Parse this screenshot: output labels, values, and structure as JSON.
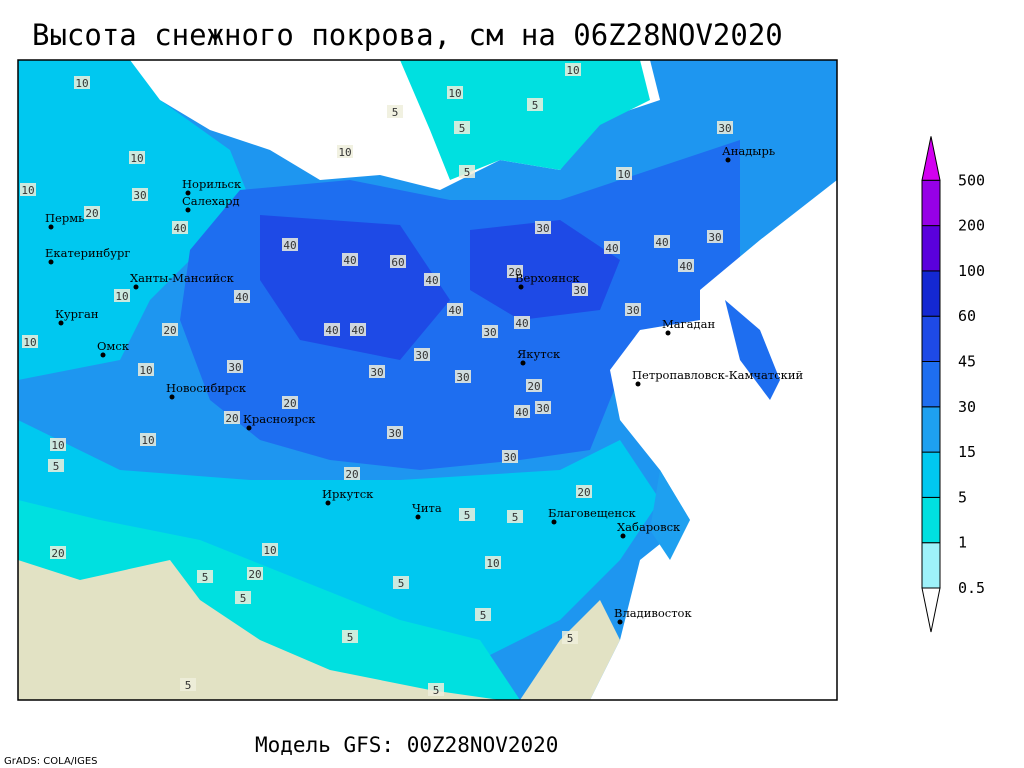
{
  "title": "Высота снежного покрова, см на 06Z28NOV2020",
  "model": "Модель GFS: 00Z28NOV2020",
  "credit": "GrADS: COLA/IGES",
  "legend": {
    "levels": [
      0.5,
      1,
      5,
      15,
      30,
      45,
      60,
      100,
      200,
      500
    ],
    "colors": [
      "#ffffff",
      "#9ef2fa",
      "#00e0e0",
      "#00c8f0",
      "#1ea0f0",
      "#1e6ef0",
      "#1e4ae6",
      "#1428d2",
      "#5a00dc",
      "#9600e6",
      "#d200f0"
    ]
  },
  "map": {
    "cities": [
      "Норильск",
      "Салехард",
      "Пермь",
      "Екатеринбург",
      "Ханты-Мансийск",
      "Курган",
      "Омск",
      "Новосибирск",
      "Красноярск",
      "Иркутск",
      "Чита",
      "Благовещенск",
      "Хабаровск",
      "Владивосток",
      "Якутск",
      "Верхоянск",
      "Магадан",
      "Петропавловск-Камчатский",
      "Анадырь"
    ],
    "contour_labels": [
      10,
      5,
      5,
      5,
      10,
      5,
      10,
      10,
      10,
      10,
      20,
      30,
      40,
      40,
      40,
      60,
      40,
      30,
      40,
      40,
      40,
      30,
      30,
      40,
      10,
      20,
      10,
      40,
      40,
      40,
      40,
      30,
      30,
      30,
      30,
      20,
      30,
      30,
      30,
      20,
      40,
      30,
      10,
      10,
      20,
      30,
      30,
      20,
      10,
      5,
      20,
      10,
      20,
      5,
      5,
      5,
      5,
      5,
      10,
      20,
      5,
      5,
      5,
      5,
      5,
      10,
      20
    ]
  }
}
